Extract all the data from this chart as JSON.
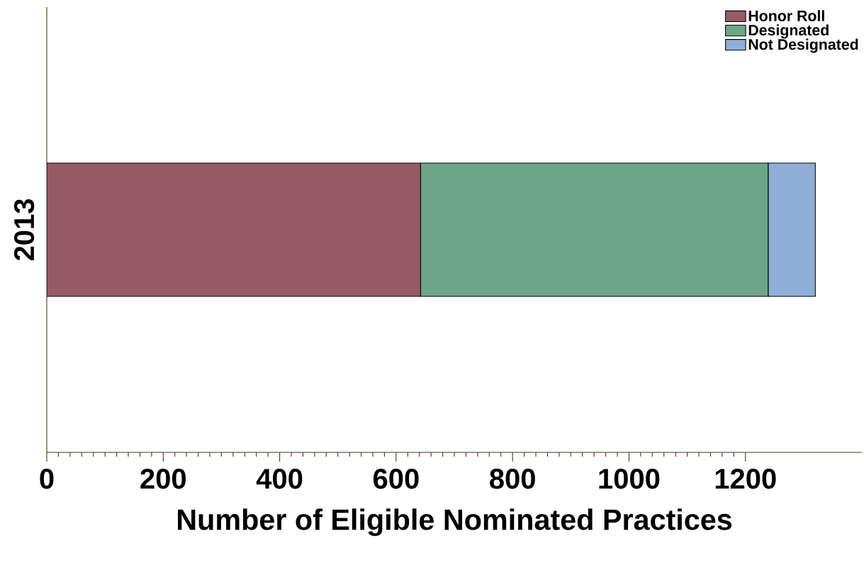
{
  "chart_data": {
    "type": "bar",
    "orientation": "horizontal",
    "stacked": true,
    "xlabel": "Number of Eligible Nominated Practices",
    "categories": [
      "2013"
    ],
    "series": [
      {
        "name": "Honor Roll",
        "color": "#985b66",
        "values": [
          642
        ]
      },
      {
        "name": "Designated",
        "color": "#6da687",
        "values": [
          597
        ]
      },
      {
        "name": "Not Designated",
        "color": "#8fafd8",
        "values": [
          81
        ]
      }
    ],
    "xlim": [
      0,
      1400
    ],
    "xticks": [
      0,
      200,
      400,
      600,
      800,
      1000,
      1200
    ],
    "legend": "top right"
  }
}
